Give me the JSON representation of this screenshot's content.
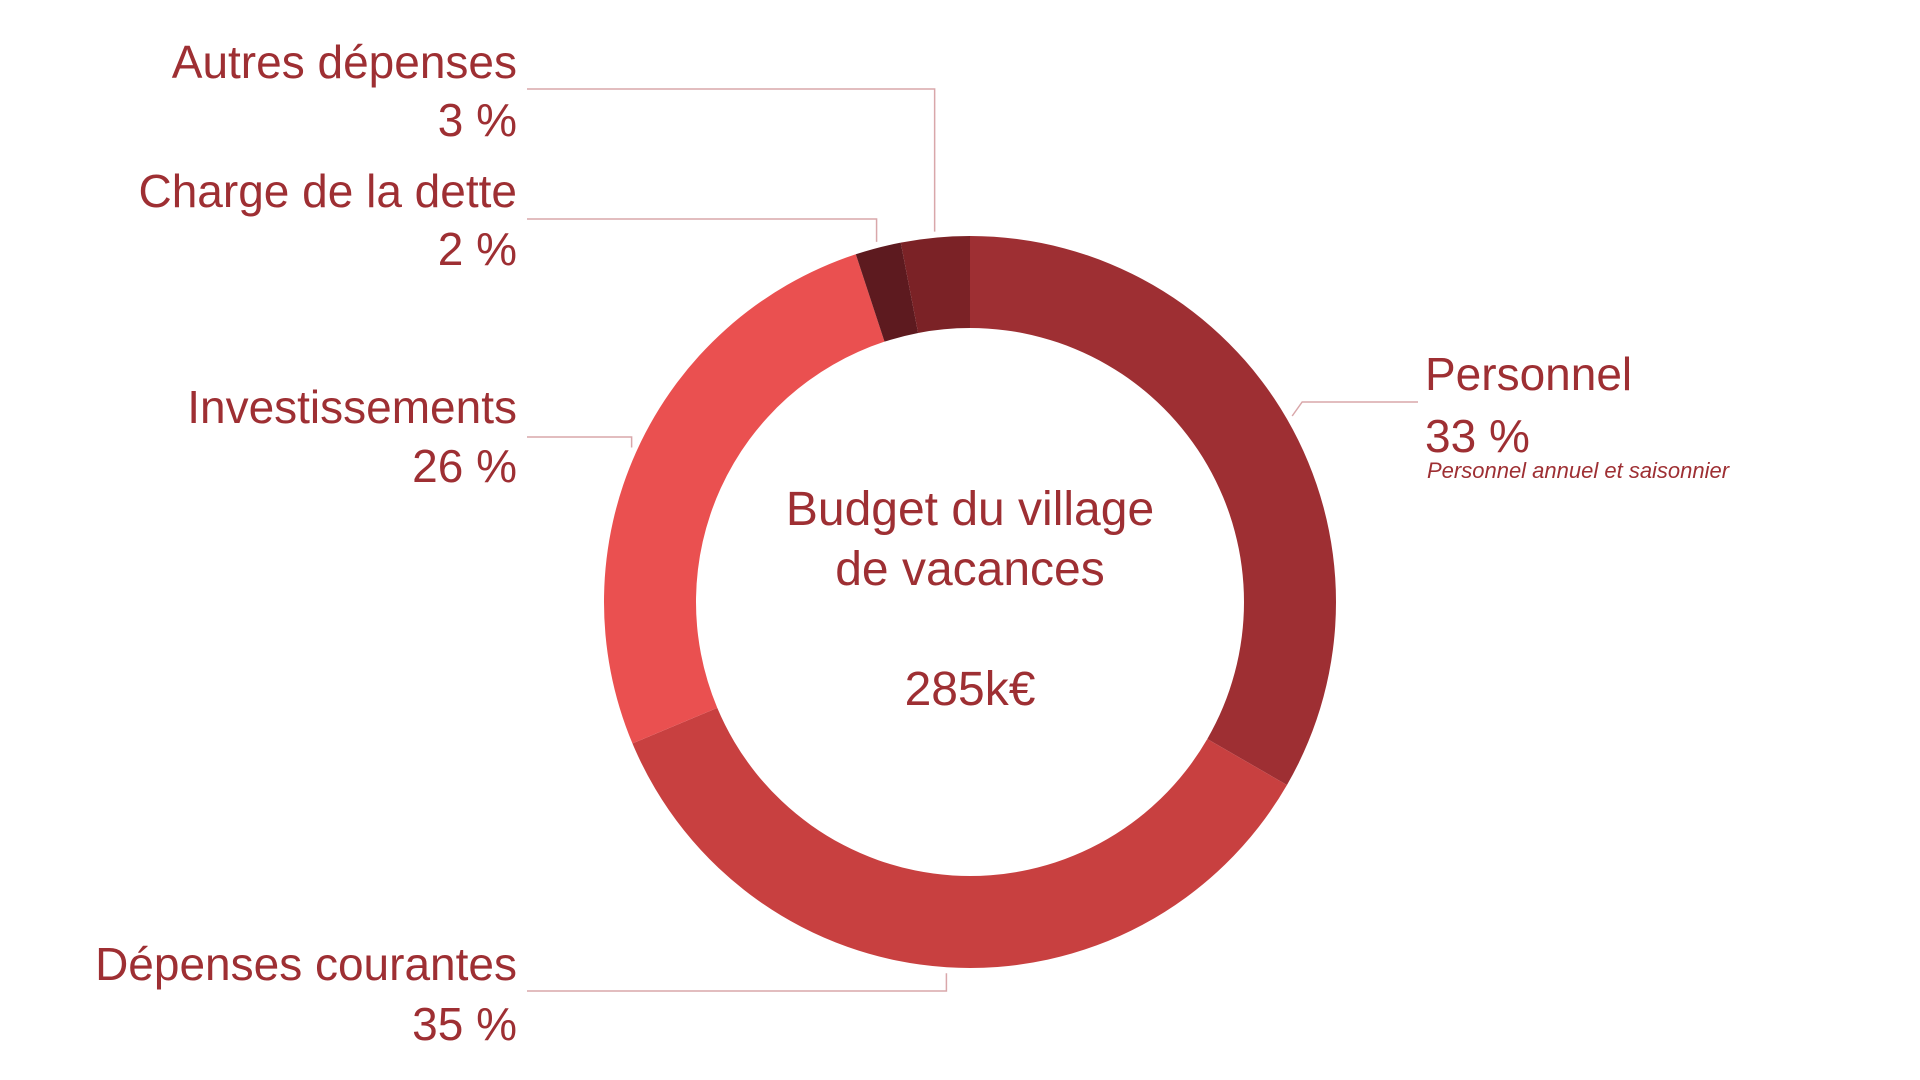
{
  "chart_data": {
    "type": "pie",
    "donut": true,
    "center": {
      "title_lines": [
        "Budget du village",
        "de vacances"
      ],
      "total": "285k€"
    },
    "slices": [
      {
        "label": "Personnel",
        "value": 33,
        "value_label": "33 %",
        "note": "Personnel annuel et saisonnier",
        "color": "#9e2f33"
      },
      {
        "label": "Dépenses courantes",
        "value": 35,
        "value_label": "35 %",
        "color": "#c84040"
      },
      {
        "label": "Investissements",
        "value": 26,
        "value_label": "26 %",
        "color": "#ea5050"
      },
      {
        "label": "Charge de la dette",
        "value": 2,
        "value_label": "2 %",
        "color": "#5d1a1f"
      },
      {
        "label": "Autres dépenses",
        "value": 3,
        "value_label": "3 %",
        "color": "#7b2226"
      }
    ],
    "text_color": "#9e2f33",
    "leader_color": "#d9a7aa"
  }
}
